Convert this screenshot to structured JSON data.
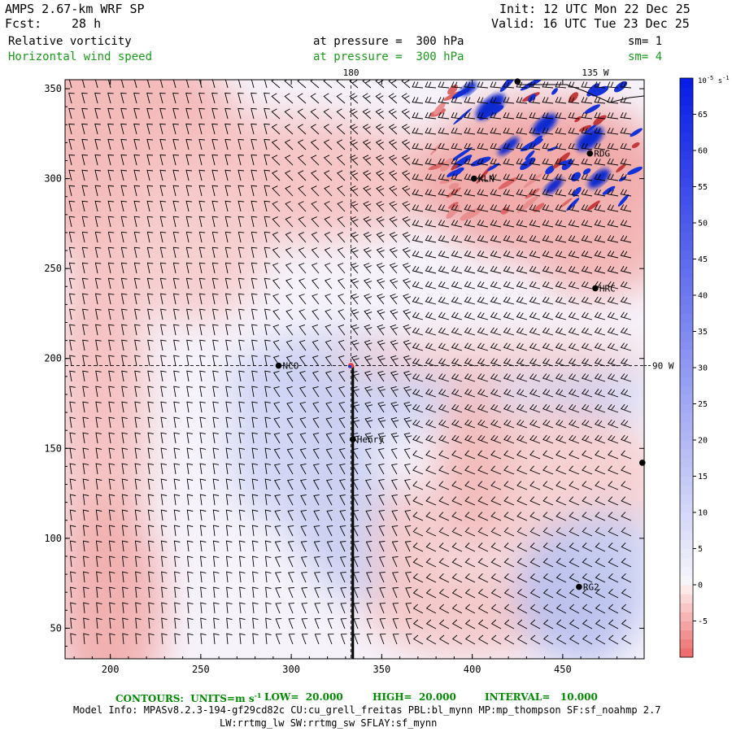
{
  "header": {
    "model": "AMPS 2.67-km WRF SP",
    "fcst_label": "Fcst:",
    "fcst_value": "28 h",
    "init": "Init: 12 UTC Mon 22 Dec 25",
    "valid": "Valid: 16 UTC Tue 23 Dec 25",
    "field1": "Relative vorticity",
    "field1_level": "at pressure =  300 hPa",
    "field1_sm": "sm= 1",
    "field2": "Horizontal wind speed",
    "field2_level": "at pressure =  300 hPa",
    "field2_sm": "sm= 4"
  },
  "footer": {
    "contours": "CONTOURS:  UNITS=m s",
    "contours_sup": "-1",
    "low": "LOW=  20.000",
    "high": "HIGH=  20.000",
    "interval": "INTERVAL=   10.000",
    "model_info": "Model Info: MPASv8.2.3-194-gf29cd82c CU:cu_grell_freitas PBL:bl_mynn MP:mp_thompson SF:sf_noahmp 2.7",
    "model_info2": "LW:rrtmg_lw SW:rrtmg_sw SFLAY:sf_mynn"
  },
  "chart_data": {
    "type": "heatmap",
    "title": "Relative vorticity / Horizontal wind speed at 300 hPa",
    "xlim": [
      175,
      495
    ],
    "ylim": [
      33,
      355
    ],
    "x_ticks": [
      200,
      250,
      300,
      350,
      400,
      450
    ],
    "y_ticks": [
      50,
      100,
      150,
      200,
      250,
      300,
      350
    ],
    "meridian_labels": [
      {
        "text": "180",
        "x": 333
      },
      {
        "text": "135 W",
        "x": 468
      },
      {
        "text": "90 W",
        "y": 196
      }
    ],
    "colorbar": {
      "units": "10",
      "units_exp": "-5",
      "units_tail": " s",
      "units_tail_exp": "-1",
      "min": -10,
      "max": 70,
      "ticks": [
        -5,
        0,
        5,
        10,
        15,
        20,
        25,
        30,
        35,
        40,
        45,
        50,
        55,
        60,
        65
      ]
    },
    "stations": [
      {
        "name": "NCO",
        "x": 293,
        "y": 196
      },
      {
        "name": "Henry",
        "x": 334,
        "y": 155
      },
      {
        "name": "KLN",
        "x": 401,
        "y": 300
      },
      {
        "name": "RDG",
        "x": 465,
        "y": 314
      },
      {
        "name": "HRC",
        "x": 468,
        "y": 239
      },
      {
        "name": "RG2",
        "x": 459,
        "y": 73
      },
      {
        "name": "",
        "x": 494,
        "y": 142
      },
      {
        "name": "",
        "x": 425,
        "y": 354
      }
    ],
    "crosshair": {
      "x": 333,
      "y": 196
    },
    "cross_section_line": {
      "x": 334,
      "y_from": 33,
      "y_to": 196
    }
  }
}
